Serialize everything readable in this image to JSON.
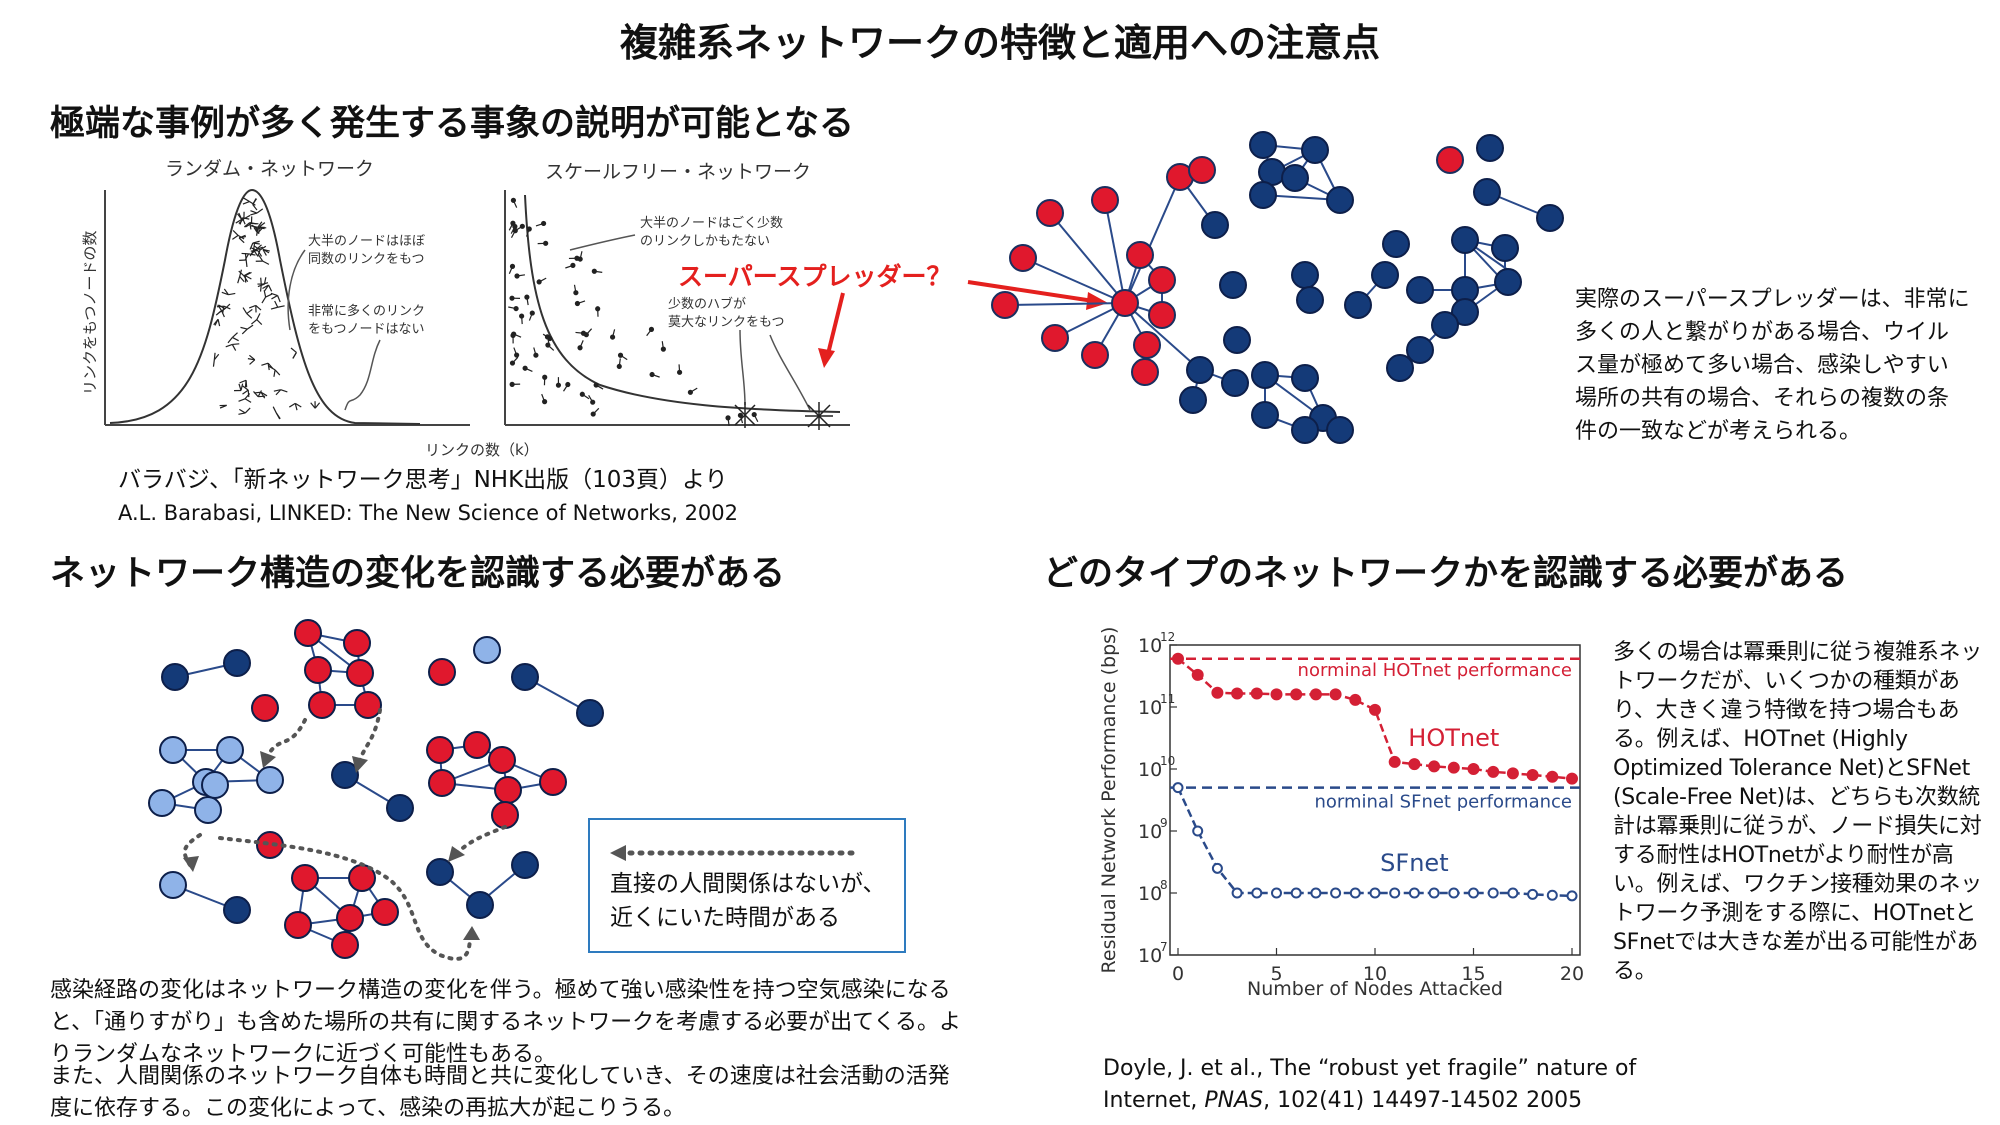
{
  "title": "複雑系ネットワークの特徴と適用への注意点",
  "section1": {
    "heading": "極端な事例が多く発生する事象の説明が可能となる",
    "random_label": "ランダム・ネットワーク",
    "scalefree_label": "スケールフリー・ネットワーク",
    "y_axis_label": "リンクをもつノードの数",
    "x_axis_label": "リンクの数（k）",
    "ann_random_1": "大半のノードはほぼ",
    "ann_random_2": "同数のリンクをもつ",
    "ann_random_3": "非常に多くのリンク",
    "ann_random_4": "をもつノードはない",
    "ann_sf_1": "大半のノードはごく少数",
    "ann_sf_2": "のリンクしかもたない",
    "ann_sf_3": "少数のハブが",
    "ann_sf_4": "莫大なリンクをもつ",
    "superspreader_label": "スーパースプレッダー？",
    "caption_1": "バラバジ、「新ネットワーク思考」NHK出版（103頁）より",
    "caption_2": "A.L. Barabasi, LINKED: The New Science of Networks, 2002",
    "description": "実際のスーパースプレッダーは、非常に多くの人と繋がりがある場合、ウイルス量が極めて多い場合、感染しやすい場所の共有の場合、それらの複数の条件の一致などが考えられる。"
  },
  "section2": {
    "heading": "ネットワーク構造の変化を認識する必要がある",
    "legend_1": "直接の人間関係はないが、",
    "legend_2": "近くにいた時間がある",
    "body_1": "感染経路の変化はネットワーク構造の変化を伴う。極めて強い感染性を持つ空気感染になると、「通りすがり」も含めた場所の共有に関するネットワークを考慮する必要が出てくる。よりランダムなネットワークに近づく可能性もある。",
    "body_2": "また、人間関係のネットワーク自体も時間と共に変化していき、その速度は社会活動の活発度に依存する。この変化によって、感染の再拡大が起こりうる。"
  },
  "section3": {
    "heading": "どのタイプのネットワークかを認識する必要がある",
    "description": "多くの場合は冪乗則に従う複雑系ネットワークだが、いくつかの種類があり、大きく違う特徴を持つ場合もある。例えば、HOTnet (Highly Optimized Tolerance Net)とSFNet (Scale-Free Net)は、どちらも次数統計は冪乗則に従うが、ノード損失に対する耐性はHOTnetがより耐性が高い。例えば、ワクチン接種効果のネットワーク予測をする際に、HOTnetとSFnetでは大きな差が出る可能性がある。",
    "citation_1a": "Doyle, J. et al., The “robust yet fragile” nature of",
    "citation_2a": "Internet, ",
    "citation_2b": "PNAS",
    "citation_2c": ", 102(41) 14497-14502 2005"
  },
  "chart_data": {
    "type": "line",
    "xlabel": "Number of Nodes Attacked",
    "ylabel": "Residual Network Performance (bps)",
    "xlim": [
      0,
      20
    ],
    "ylim": [
      10000000,
      1000000000000
    ],
    "y_scale": "log",
    "x_ticks": [
      "0",
      "5",
      "10",
      "15",
      "20"
    ],
    "y_ticks": [
      "10",
      "10",
      "10",
      "10",
      "10",
      "10"
    ],
    "y_tick_exponents": [
      "7",
      "8",
      "9",
      "10",
      "11",
      "12"
    ],
    "x": [
      0,
      1,
      2,
      3,
      4,
      5,
      6,
      7,
      8,
      9,
      10,
      11,
      12,
      13,
      14,
      15,
      16,
      17,
      18,
      19,
      20
    ],
    "series": [
      {
        "name": "HOTnet",
        "color": "#d42035",
        "values": [
          600000000000,
          330000000000,
          170000000000,
          165000000000,
          165000000000,
          160000000000,
          160000000000,
          160000000000,
          160000000000,
          130000000000,
          90000000000,
          13000000000,
          12000000000,
          11000000000,
          10500000000,
          10000000000,
          9000000000,
          8500000000,
          8000000000,
          7500000000,
          7000000000
        ]
      },
      {
        "name": "SFnet",
        "color": "#2a4a8a",
        "values": [
          5000000000,
          1000000000,
          250000000,
          100000000,
          100000000,
          100000000,
          100000000,
          100000000,
          100000000,
          100000000,
          100000000,
          100000000,
          100000000,
          100000000,
          100000000,
          100000000,
          100000000,
          100000000,
          95000000,
          92000000,
          90000000
        ]
      }
    ],
    "reference_lines": [
      {
        "label": "norminal HOTnet performance",
        "value": 600000000000,
        "color": "#d42035"
      },
      {
        "label": "norminal SFnet performance",
        "value": 5000000000,
        "color": "#2a4a8a"
      }
    ],
    "grid": false,
    "legend": "none"
  }
}
